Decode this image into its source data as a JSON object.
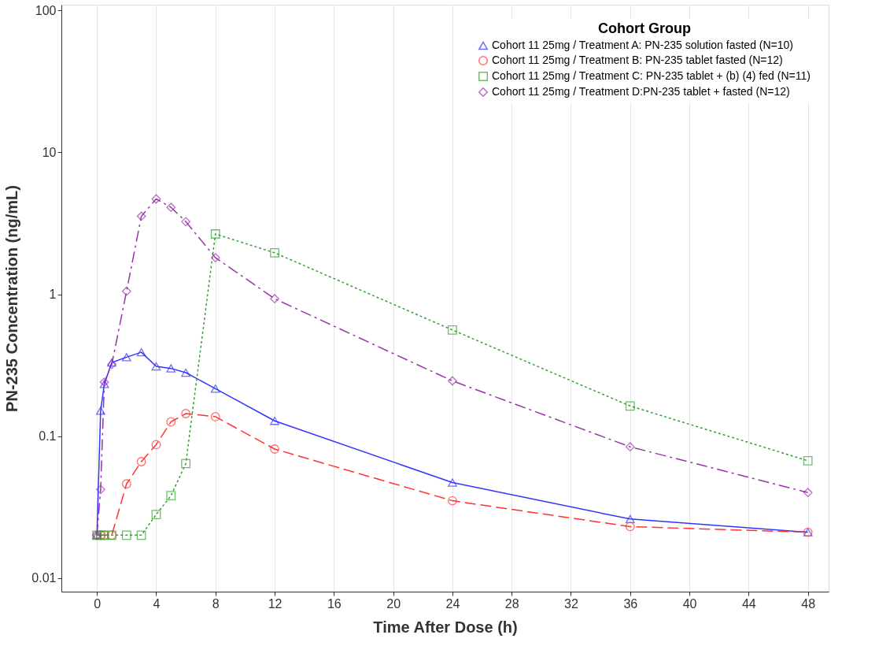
{
  "chart_data": {
    "type": "line",
    "xlabel": "Time After Dose (h)",
    "ylabel": "PN-235 Concentration (ng/mL)",
    "legend_title": "Cohort Group",
    "log": "y",
    "xlim": [
      -2.4,
      49.4
    ],
    "ylim": [
      0.008,
      110
    ],
    "xticks": [
      0,
      4,
      8,
      12,
      16,
      20,
      24,
      28,
      32,
      36,
      40,
      44,
      48
    ],
    "yticks": [
      0.01,
      0.1,
      1,
      10,
      100
    ],
    "grid": "x",
    "legend": "top right",
    "x": [
      0,
      0.25,
      0.5,
      1,
      2,
      3,
      4,
      5,
      6,
      8,
      12,
      24,
      36,
      48
    ],
    "series": [
      {
        "name": "Cohort 11 25mg / Treatment A: PN-235 solution fasted (N=10)",
        "color": "#3333ff",
        "marker": "triangle",
        "line_style": "solid",
        "values": [
          0.02,
          0.151,
          0.233,
          0.33,
          0.36,
          0.39,
          0.31,
          0.3,
          0.28,
          0.216,
          0.128,
          0.047,
          0.026,
          0.021
        ]
      },
      {
        "name": "Cohort 11 25mg / Treatment B: PN-235 tablet fasted (N=12)",
        "color": "#ff3333",
        "marker": "circle",
        "line_style": "dashed",
        "values": [
          0.02,
          0.02,
          0.02,
          0.02,
          0.046,
          0.066,
          0.087,
          0.126,
          0.144,
          0.137,
          0.081,
          0.035,
          0.023,
          0.021
        ]
      },
      {
        "name": "Cohort 11 25mg / Treatment C: PN-235 tablet + (b) (4) fed (N=11)",
        "color": "#33a033",
        "marker": "square",
        "line_style": "dotted",
        "values": [
          0.02,
          0.02,
          0.02,
          0.02,
          0.02,
          0.02,
          0.028,
          0.038,
          0.064,
          2.66,
          1.96,
          0.56,
          0.163,
          0.067
        ]
      },
      {
        "name": "Cohort 11 25mg / Treatment D:PN-235 tablet + fasted (N=12)",
        "color": "#9933aa",
        "marker": "diamond",
        "line_style": "dashdot",
        "values": [
          0.02,
          0.042,
          0.24,
          0.32,
          1.05,
          3.55,
          4.7,
          4.1,
          3.25,
          1.81,
          0.93,
          0.245,
          0.084,
          0.04
        ]
      }
    ]
  }
}
